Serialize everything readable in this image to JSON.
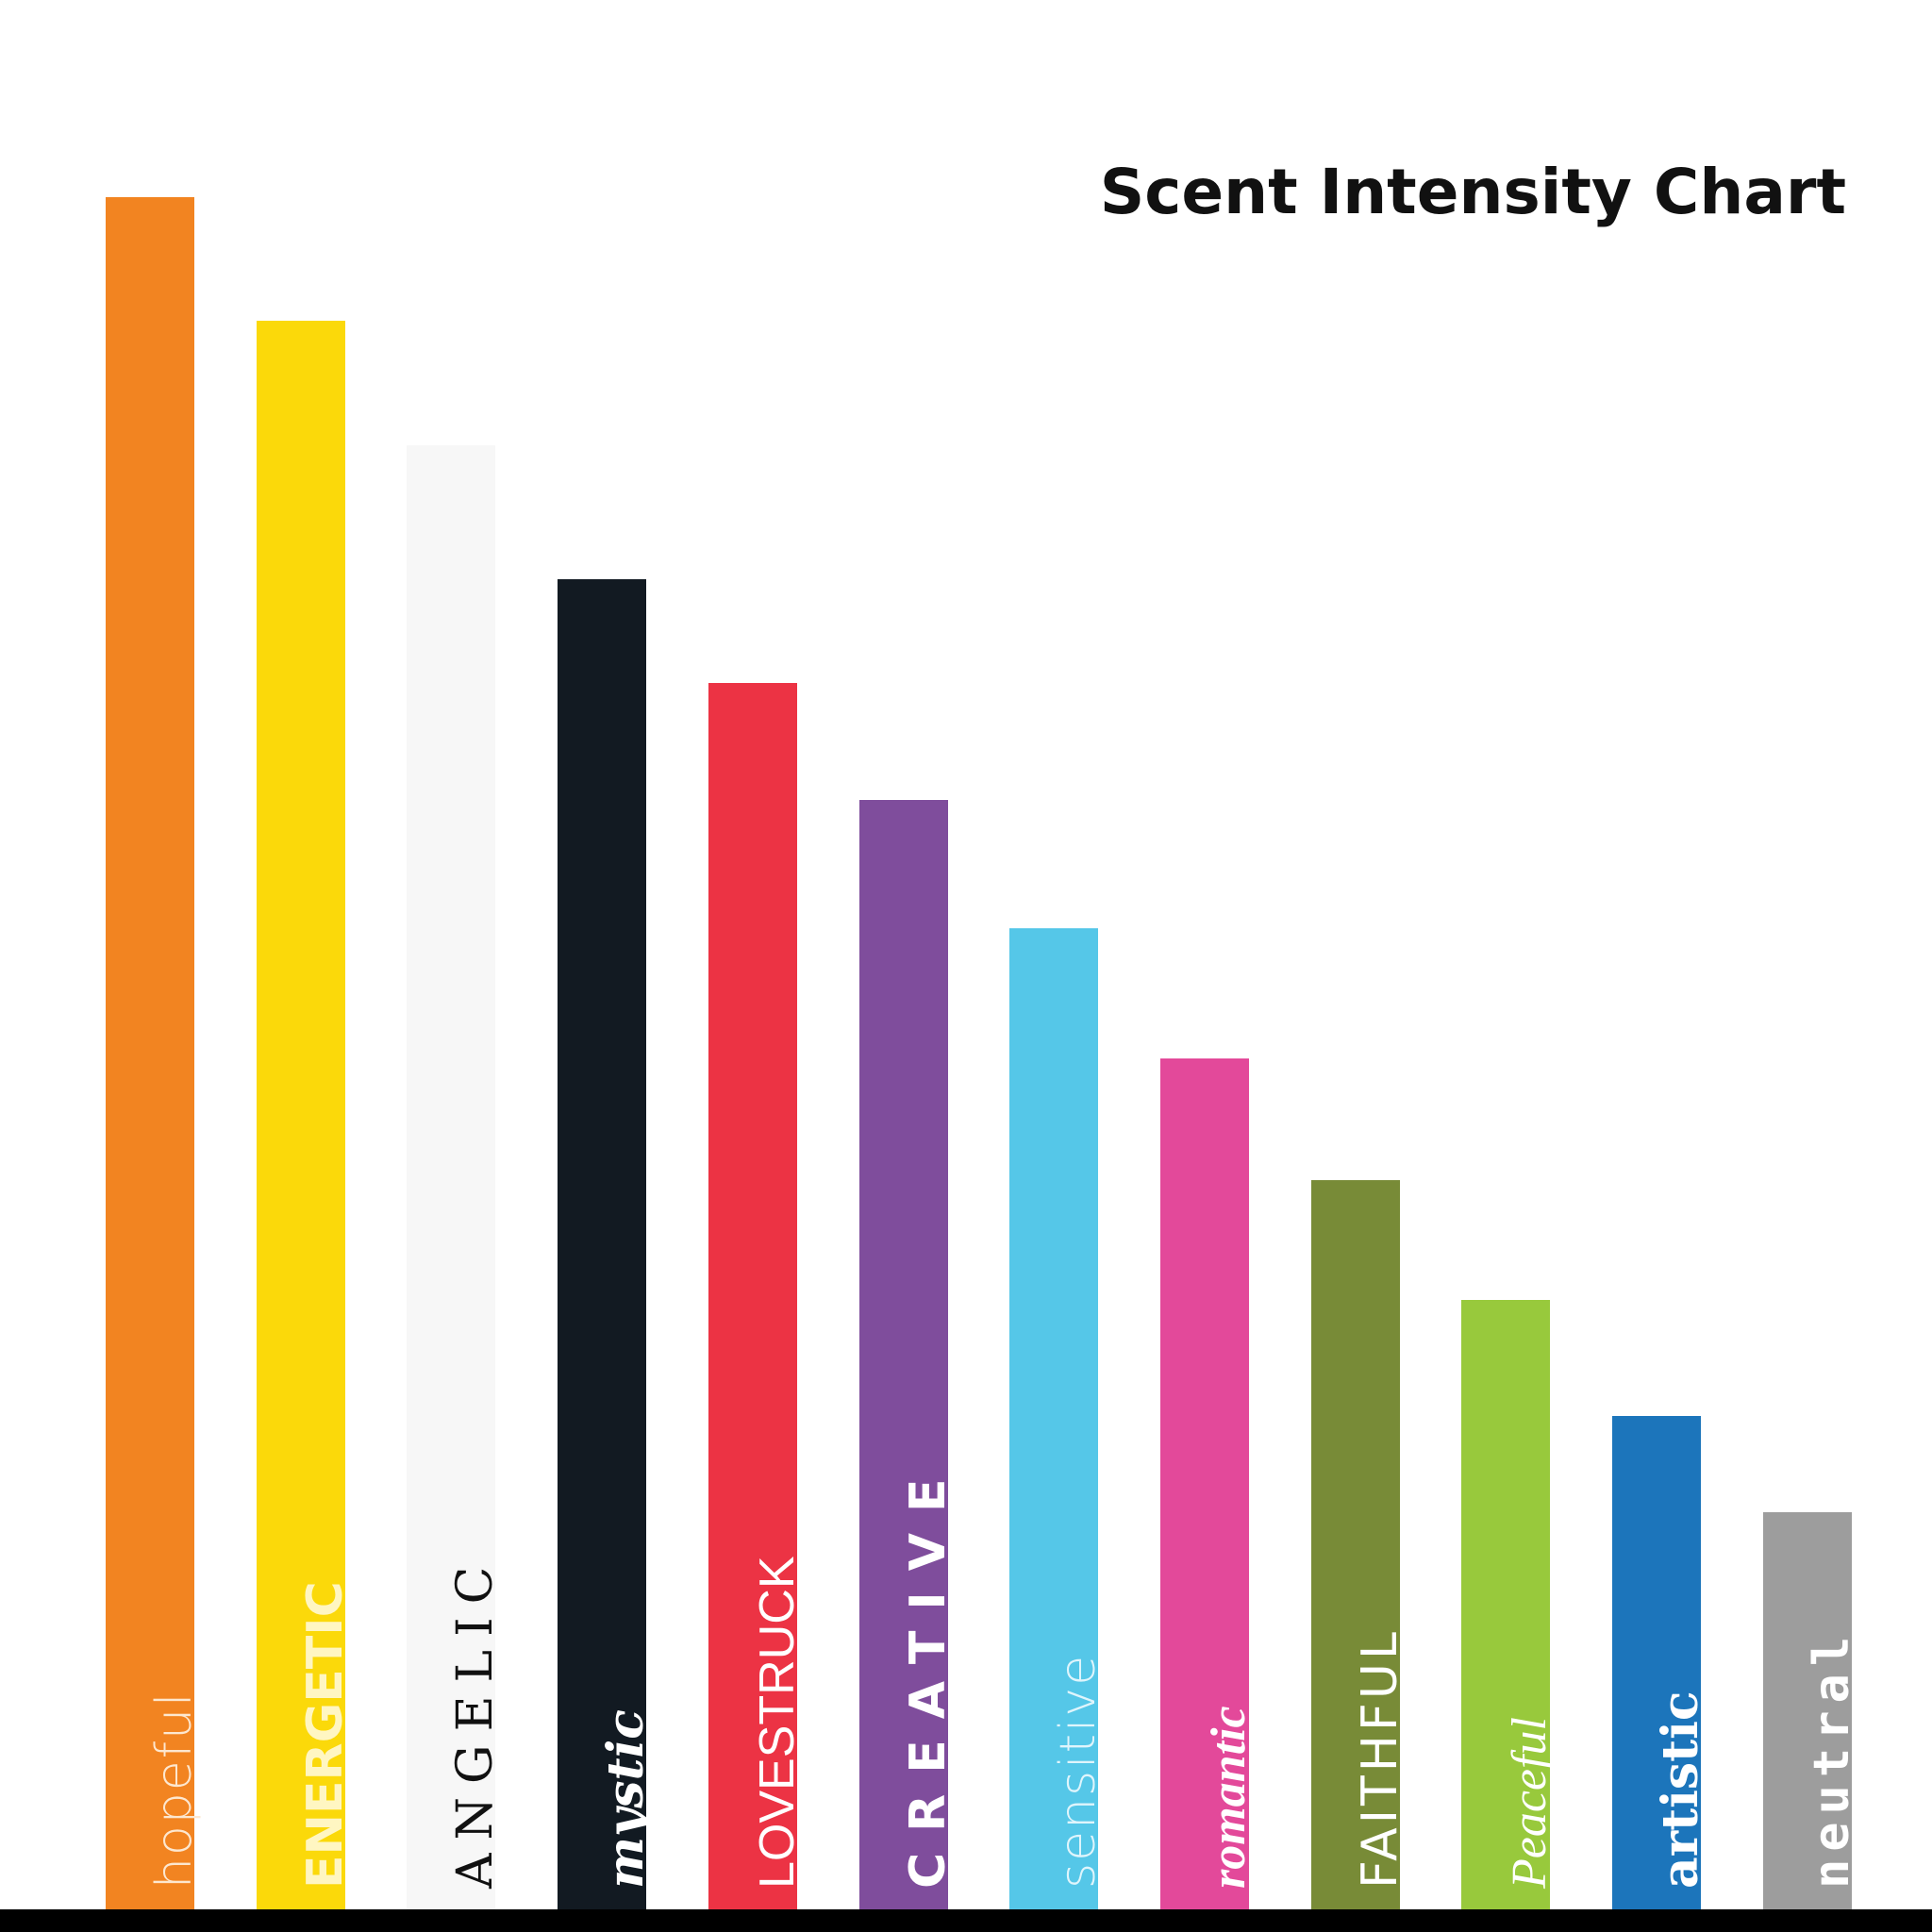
{
  "chart_data": {
    "type": "bar",
    "title": "Scent Intensity Chart",
    "xlabel": "",
    "ylabel": "",
    "axes_printed": false,
    "grid": false,
    "legend": "none",
    "categories": [
      "hopeful",
      "ENERGETIC",
      "ANGELIC",
      "mystic",
      "LOVESTRUCK",
      "CREATIVE",
      "sensitive",
      "romantic",
      "FAITHFUL",
      "Peaceful",
      "artistic",
      "neutral"
    ],
    "values": [
      100,
      92.8,
      85.5,
      77.7,
      71.6,
      64.8,
      57.3,
      49.7,
      42.6,
      35.6,
      28.8,
      23.2
    ],
    "value_unit": "percent of tallest bar",
    "colors": [
      "#f28421",
      "#fbd90a",
      "#f7f7f7",
      "#121a22",
      "#ec3344",
      "#7f4d9c",
      "#55c7e8",
      "#e3499a",
      "#788b37",
      "#98c93c",
      "#1c75bb",
      "#9d9d9d"
    ],
    "label_colors": [
      "#fde7cf",
      "#fff6c2",
      "#111111",
      "#ffffff",
      "#ffffff",
      "#ffffff",
      "#dff5fc",
      "#ffffff",
      "#ffffff",
      "#ffffff",
      "#ffffff",
      "#ffffff"
    ]
  }
}
